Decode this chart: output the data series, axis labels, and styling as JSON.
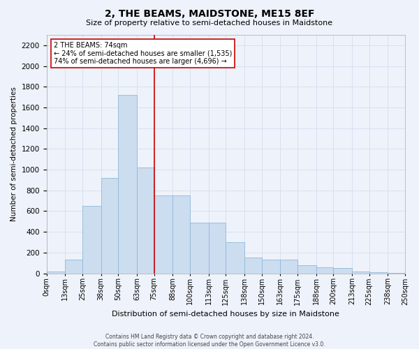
{
  "title": "2, THE BEAMS, MAIDSTONE, ME15 8EF",
  "subtitle": "Size of property relative to semi-detached houses in Maidstone",
  "xlabel": "Distribution of semi-detached houses by size in Maidstone",
  "ylabel": "Number of semi-detached properties",
  "footer1": "Contains HM Land Registry data © Crown copyright and database right 2024.",
  "footer2": "Contains public sector information licensed under the Open Government Licence v3.0.",
  "annotation_title": "2 THE BEAMS: 74sqm",
  "annotation_line1": "← 24% of semi-detached houses are smaller (1,535)",
  "annotation_line2": "74% of semi-detached houses are larger (4,696) →",
  "property_size": 74,
  "bin_edges": [
    0,
    13,
    25,
    38,
    50,
    63,
    75,
    88,
    100,
    113,
    125,
    138,
    150,
    163,
    175,
    188,
    200,
    213,
    225,
    238,
    250
  ],
  "bar_heights": [
    20,
    130,
    650,
    920,
    1720,
    1020,
    750,
    750,
    490,
    490,
    300,
    150,
    130,
    130,
    80,
    60,
    50,
    20,
    10,
    5
  ],
  "bar_color": "#ccddf0",
  "bar_edge_color": "#90b8d8",
  "vline_color": "#cc0000",
  "vline_x": 75,
  "annotation_box_facecolor": "#ffffff",
  "annotation_box_edgecolor": "#cc0000",
  "bg_color": "#eef2fa",
  "grid_color": "#d8dff0",
  "ylim": [
    0,
    2300
  ],
  "yticks": [
    0,
    200,
    400,
    600,
    800,
    1000,
    1200,
    1400,
    1600,
    1800,
    2000,
    2200
  ],
  "xtick_labels": [
    "0sqm",
    "13sqm",
    "25sqm",
    "38sqm",
    "50sqm",
    "63sqm",
    "75sqm",
    "88sqm",
    "100sqm",
    "113sqm",
    "125sqm",
    "138sqm",
    "150sqm",
    "163sqm",
    "175sqm",
    "188sqm",
    "200sqm",
    "213sqm",
    "225sqm",
    "238sqm",
    "250sqm"
  ],
  "title_fontsize": 10,
  "subtitle_fontsize": 8,
  "ylabel_fontsize": 7.5,
  "xlabel_fontsize": 8,
  "ytick_fontsize": 7.5,
  "xtick_fontsize": 7,
  "footer_fontsize": 5.5
}
